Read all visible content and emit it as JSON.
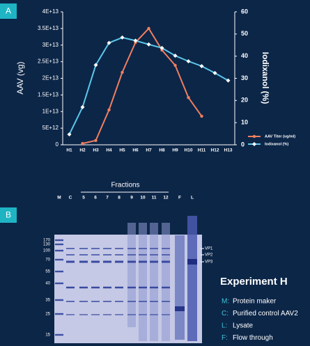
{
  "panel_a": {
    "label": "A"
  },
  "chart_data": {
    "type": "line",
    "y_label": "AAV (vg)",
    "y2_label": "Iodixanol (%)",
    "categories": [
      "H1",
      "H2",
      "H3",
      "H4",
      "H5",
      "H6",
      "H7",
      "H8",
      "H9",
      "H10",
      "H11",
      "H12",
      "H13"
    ],
    "series": [
      {
        "name": "AAV Titer (vg/ml)",
        "color": "#f07f5f",
        "marker": "circle",
        "values": [
          null,
          400000000000,
          1300000000000,
          10500000000000,
          21800000000000,
          30800000000000,
          35000000000000,
          28500000000000,
          23900000000000,
          14200000000000,
          8600000000000,
          null,
          null
        ]
      },
      {
        "name": "Iodixanol (%)",
        "color": "#5cc8ea",
        "marker": "diamond",
        "axis": "y2",
        "values": [
          4.7,
          17,
          36,
          46,
          48.4,
          47,
          45.3,
          43.7,
          40.2,
          37.7,
          35.5,
          32.4,
          29
        ]
      }
    ],
    "ylim": [
      0,
      40000000000000
    ],
    "yticks": [
      0,
      {
        "value": 5000000000000,
        "label": "5E+12"
      },
      {
        "value": 10000000000000,
        "label": "1E+13"
      },
      {
        "value": 15000000000000,
        "label": "1.5E+13"
      },
      {
        "value": 20000000000000,
        "label": "2E+13"
      },
      {
        "value": 25000000000000,
        "label": "2.5E+13"
      },
      {
        "value": 30000000000000,
        "label": "3E+13"
      },
      {
        "value": 35000000000000,
        "label": "3.5E+13"
      },
      {
        "value": 40000000000000,
        "label": "4E+13"
      }
    ],
    "y2lim": [
      0,
      60
    ],
    "y2ticks": [
      0,
      10,
      20,
      30,
      40,
      50,
      60
    ],
    "grid": false,
    "legend": "lower-right"
  },
  "panel_b": {
    "label": "B",
    "fractions_title": "Fractions",
    "lanes": [
      "M",
      "C",
      "5",
      "6",
      "7",
      "8",
      "9",
      "10",
      "11",
      "12",
      "F",
      "L"
    ],
    "marker_sizes": [
      "170",
      "130",
      "100",
      "70",
      "55",
      "40",
      "35",
      "25",
      "15"
    ],
    "band_labels": [
      "VP1",
      "VP2",
      "VP3"
    ],
    "legend_title": "Experiment H",
    "legend_items": [
      {
        "key": "M:",
        "text": "Protein maker"
      },
      {
        "key": "C:",
        "text": "Purified control AAV2"
      },
      {
        "key": "L:",
        "text": "Lysate"
      },
      {
        "key": "F:",
        "text": "Flow through"
      }
    ]
  }
}
